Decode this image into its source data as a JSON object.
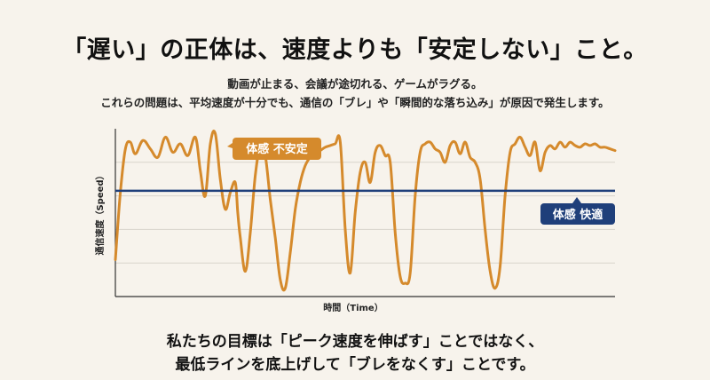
{
  "header": {
    "title": "「遅い」の正体は、速度よりも「安定しない」こと。",
    "subtitle_line1": "動画が止まる、会議が途切れる、ゲームがラグる。",
    "subtitle_line2": "これらの問題は、平均速度が十分でも、通信の「ブレ」や「瞬間的な落ち込み」が原因で発生します。"
  },
  "footer": {
    "line1": "私たちの目標は「ピーク速度を伸ばす」ことではなく、",
    "line2": "最低ラインを底上げして「ブレをなくす」ことです。"
  },
  "colors": {
    "series_line": "#d58a2c",
    "threshold_line": "#1f3f7a",
    "unstable_label_bg": "#d58a2c",
    "comfortable_label_bg": "#1f3f7a",
    "grid": "#d9d4cc",
    "axis": "#333333",
    "background": "#f7f3ec"
  },
  "chart_data": {
    "type": "line",
    "title": "",
    "xlabel": "時間（Time）",
    "ylabel": "通信速度（Speed）",
    "xlim": [
      0,
      100
    ],
    "ylim": [
      0,
      100
    ],
    "grid": true,
    "threshold": {
      "value": 63,
      "label": "体感 快適"
    },
    "annotation": {
      "label": "体感 不安定"
    },
    "series": [
      {
        "x": [
          0,
          1,
          2,
          3,
          4,
          5.5,
          7,
          8.5,
          10,
          11.5,
          13,
          14.5,
          16,
          17,
          18,
          19,
          20,
          21,
          22,
          23,
          24,
          24.5,
          25,
          26,
          27,
          28,
          29,
          30,
          31,
          32,
          33,
          34,
          35,
          36,
          37,
          38,
          39,
          40,
          41,
          42,
          43,
          44,
          45,
          46,
          47,
          48,
          49,
          50,
          51,
          52,
          53,
          54,
          55,
          56,
          57,
          58,
          59,
          60,
          61,
          62,
          63,
          64,
          65,
          66,
          67,
          68,
          69,
          70,
          71,
          72,
          73,
          74,
          75,
          76,
          77,
          78,
          79,
          80,
          81,
          82,
          83,
          84,
          85,
          86,
          87,
          88,
          89,
          90,
          91,
          92,
          93,
          94,
          95,
          96,
          97,
          98,
          99,
          100
        ],
        "y": [
          22,
          62,
          88,
          92,
          85,
          93,
          88,
          83,
          95,
          86,
          91,
          84,
          95,
          75,
          60,
          91,
          97,
          70,
          52,
          62,
          68,
          50,
          35,
          15,
          38,
          72,
          90,
          84,
          58,
          35,
          10,
          5,
          26,
          52,
          68,
          78,
          83,
          85,
          87,
          89,
          90,
          91,
          92,
          40,
          14,
          50,
          74,
          80,
          68,
          86,
          90,
          84,
          80,
          38,
          12,
          8,
          14,
          60,
          86,
          91,
          92,
          88,
          86,
          80,
          90,
          92,
          85,
          92,
          83,
          80,
          70,
          40,
          15,
          5,
          18,
          60,
          86,
          91,
          95,
          89,
          84,
          92,
          75,
          86,
          90,
          88,
          92,
          89,
          92,
          90,
          89,
          91,
          90,
          91,
          89,
          89,
          88,
          87
        ]
      }
    ]
  }
}
